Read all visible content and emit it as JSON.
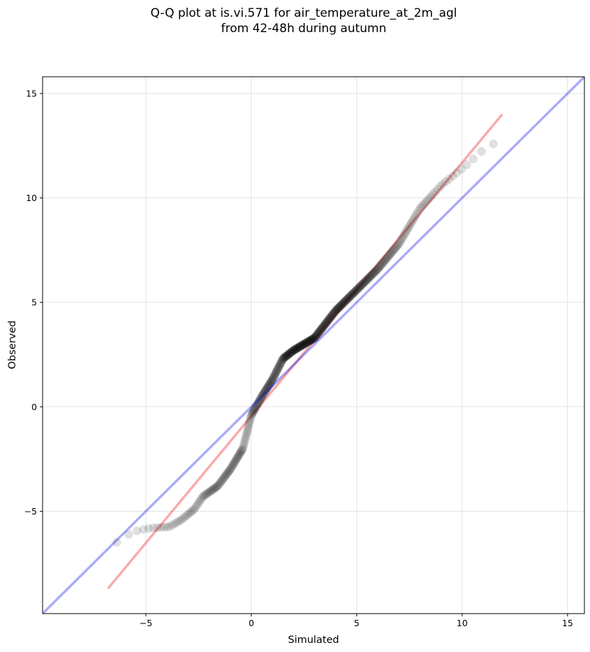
{
  "chart_data": {
    "type": "scatter",
    "title_lines": [
      "Q-Q plot at is.vi.571 for air_temperature_at_2m_agl",
      "from 42-48h during autumn"
    ],
    "xlabel": "Simulated",
    "ylabel": "Observed",
    "xlim": [
      -9.9,
      15.8
    ],
    "ylim": [
      -9.9,
      15.8
    ],
    "xticks": [
      -5,
      0,
      5,
      10,
      15
    ],
    "yticks": [
      -5,
      0,
      5,
      10,
      15
    ],
    "xtick_labels": [
      "−5",
      "0",
      "5",
      "10",
      "15"
    ],
    "ytick_labels": [
      "−5",
      "0",
      "5",
      "10",
      "15"
    ],
    "grid": true,
    "reference_line": {
      "from": [
        -9.9,
        -9.9
      ],
      "to": [
        15.8,
        15.8
      ],
      "color": "#0000ee"
    },
    "fit_line": {
      "from": [
        -6.8,
        -8.7
      ],
      "to": [
        11.9,
        14.0
      ],
      "color": "#ee0000"
    },
    "points_color": "#000000",
    "curve_knots": [
      [
        -6.8,
        -8.2
      ],
      [
        -6.7,
        -7.7
      ],
      [
        -6.5,
        -6.8
      ],
      [
        -6.35,
        -6.4
      ],
      [
        -6.0,
        -6.2
      ],
      [
        -5.7,
        -6.05
      ],
      [
        -5.3,
        -5.9
      ],
      [
        -4.7,
        -5.8
      ],
      [
        -3.9,
        -5.75
      ],
      [
        -3.3,
        -5.4
      ],
      [
        -2.7,
        -4.9
      ],
      [
        -2.3,
        -4.3
      ],
      [
        -1.6,
        -3.8
      ],
      [
        -1.0,
        -3.0
      ],
      [
        -0.4,
        -2.0
      ],
      [
        0.0,
        -0.4
      ],
      [
        0.5,
        0.5
      ],
      [
        1.0,
        1.3
      ],
      [
        1.5,
        2.3
      ],
      [
        2.0,
        2.7
      ],
      [
        3.0,
        3.3
      ],
      [
        4.0,
        4.6
      ],
      [
        5.0,
        5.6
      ],
      [
        6.0,
        6.6
      ],
      [
        7.0,
        7.8
      ],
      [
        8.0,
        9.5
      ],
      [
        9.0,
        10.6
      ],
      [
        10.0,
        11.4
      ],
      [
        11.0,
        12.3
      ],
      [
        11.5,
        12.6
      ],
      [
        11.8,
        13.3
      ],
      [
        11.9,
        14.6
      ]
    ],
    "n_points": 420
  }
}
